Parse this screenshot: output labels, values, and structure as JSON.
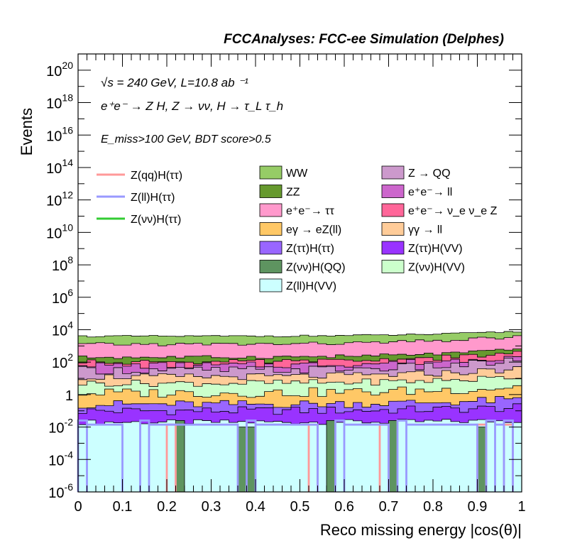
{
  "header": {
    "title": "FCCAnalyses: FCC-ee Simulation (Delphes)"
  },
  "annotations": {
    "energy_line": "√s = 240 GeV, L=10.8 ab ⁻¹",
    "process_line": "e⁺e⁻ → Z H, Z → νν, H → τ_L τ_h",
    "cut_line": "E_miss>100 GeV, BDT score>0.5"
  },
  "colors": {
    "WW": "#96cc66",
    "ZZ": "#66992e",
    "ee_tautau": "#ff99cc",
    "egamma_eZll": "#ffc866",
    "Ztautau_Htautau": "#9966ff",
    "Znunu_HQQ": "#5e9460",
    "Zll_HVV": "#ccffff",
    "Z_QQ": "#cc99cc",
    "ee_ll": "#cc66cc",
    "ee_nuenue_Z": "#ff6699",
    "gammagamma_ll": "#ffcc99",
    "Ztautau_HVV": "#9933ff",
    "Znunu_HVV": "#ccffcc",
    "Zqq_Htautau_line": "#ff9999",
    "Zll_Htautau_line": "#9999ff",
    "Znunu_Htautau_line": "#33cc33"
  },
  "chart_data": {
    "type": "area",
    "title": "FCCAnalyses: FCC-ee Simulation (Delphes)",
    "xlabel": "Reco missing energy |cos(θ)|",
    "ylabel": "Events",
    "xlim": [
      0,
      1
    ],
    "ylim": [
      1e-06,
      1e+21
    ],
    "yscale": "log",
    "grid": false,
    "legend_position": "top",
    "x_ticks": [
      "0",
      "0.1",
      "0.2",
      "0.3",
      "0.4",
      "0.5",
      "0.6",
      "0.7",
      "0.8",
      "0.9",
      "1"
    ],
    "y_ticks": [
      {
        "base": "10",
        "exp": "-6"
      },
      {
        "base": "10",
        "exp": "-4"
      },
      {
        "base": "10",
        "exp": "-2"
      },
      {
        "base": "1",
        "exp": ""
      },
      {
        "base": "10",
        "exp": "2"
      },
      {
        "base": "10",
        "exp": "4"
      },
      {
        "base": "10",
        "exp": "6"
      },
      {
        "base": "10",
        "exp": "8"
      },
      {
        "base": "10",
        "exp": "10"
      },
      {
        "base": "10",
        "exp": "12"
      },
      {
        "base": "10",
        "exp": "14"
      },
      {
        "base": "10",
        "exp": "16"
      },
      {
        "base": "10",
        "exp": "18"
      },
      {
        "base": "10",
        "exp": "20"
      }
    ],
    "bins": 50,
    "stack_cumulative_log10": [
      {
        "name": "Z(ll)H(VV)",
        "key": "Zll_HVV",
        "level": -1.7,
        "amp": 0.15,
        "rise": 0.1
      },
      {
        "name": "Z(ττ)H(VV)",
        "key": "Ztautau_HVV",
        "level": -1.0,
        "amp": 0.25,
        "rise": 0.2
      },
      {
        "name": "Z(ττ)H(ττ)",
        "key": "Ztautau_Htautau",
        "level": -0.6,
        "amp": 0.25,
        "rise": 0.3
      },
      {
        "name": "eγ → eZ(ll)",
        "key": "egamma_eZll",
        "level": 0.1,
        "amp": 0.3,
        "rise": 0.4
      },
      {
        "name": "Z(νν)H(VV)",
        "key": "Znunu_HVV",
        "level": 0.7,
        "amp": 0.2,
        "rise": 0.4
      },
      {
        "name": "γγ → ll",
        "key": "gammagamma_ll",
        "level": 1.1,
        "amp": 0.2,
        "rise": 0.5
      },
      {
        "name": "Z → QQ",
        "key": "Z_QQ",
        "level": 1.5,
        "amp": 0.25,
        "rise": 0.6
      },
      {
        "name": "e⁺e⁻→ ll",
        "key": "ee_ll",
        "level": 1.8,
        "amp": 0.2,
        "rise": 0.6
      },
      {
        "name": "e⁺e⁻→ ν_e ν_e Z",
        "key": "ee_nuenue_Z",
        "level": 2.0,
        "amp": 0.15,
        "rise": 0.6
      },
      {
        "name": "ZZ",
        "key": "ZZ",
        "level": 2.3,
        "amp": 0.1,
        "rise": 0.5
      },
      {
        "name": "e⁺e⁻→ ττ",
        "key": "ee_tautau",
        "level": 3.1,
        "amp": 0.1,
        "rise": 0.5
      },
      {
        "name": "WW",
        "key": "WW",
        "level": 3.6,
        "amp": 0.05,
        "rise": 0.3
      }
    ],
    "Znunu_HQQ_bins": [
      {
        "x": [
          0.22,
          0.24
        ],
        "log10_top": -1.6
      },
      {
        "x": [
          0.36,
          0.38
        ],
        "log10_top": -2.0
      },
      {
        "x": [
          0.38,
          0.4
        ],
        "log10_top": -2.0
      },
      {
        "x": [
          0.56,
          0.58
        ],
        "log10_top": -1.6
      },
      {
        "x": [
          0.7,
          0.72
        ],
        "log10_top": -1.6
      },
      {
        "x": [
          0.9,
          0.92
        ],
        "log10_top": -2.0
      }
    ],
    "line_series": [
      {
        "name": "Z(qq)H(ττ)",
        "key": "Zqq_Htautau_line",
        "segments": [
          [
            0.2,
            0.22,
            -1.85
          ],
          [
            0.52,
            0.54,
            -1.85
          ],
          [
            0.68,
            0.7,
            -1.85
          ],
          [
            0.9,
            0.92,
            -1.85
          ],
          [
            0.96,
            0.98,
            -1.85
          ]
        ]
      },
      {
        "name": "Z(ll)H(ττ)",
        "key": "Zll_Htautau_line",
        "segments": [
          [
            0.0,
            0.02,
            -1.6
          ],
          [
            0.02,
            0.1,
            -1.85
          ],
          [
            0.14,
            0.16,
            -1.6
          ],
          [
            0.16,
            0.36,
            -1.85
          ],
          [
            0.38,
            0.4,
            -1.6
          ],
          [
            0.4,
            0.54,
            -1.85
          ],
          [
            0.58,
            0.6,
            -1.6
          ],
          [
            0.6,
            0.7,
            -1.85
          ],
          [
            0.72,
            0.74,
            -1.6
          ],
          [
            0.74,
            0.9,
            -1.85
          ],
          [
            0.92,
            0.94,
            -1.6
          ],
          [
            0.94,
            0.96,
            -1.85
          ],
          [
            0.96,
            0.98,
            -1.6
          ]
        ]
      },
      {
        "name": "Z(νν)H(ττ)",
        "key": "Znunu_Htautau_line",
        "segments": []
      }
    ],
    "legend": {
      "lines": [
        {
          "label": "Z(qq)H(ττ)",
          "key": "Zqq_Htautau_line"
        },
        {
          "label": "Z(ll)H(ττ)",
          "key": "Zll_Htautau_line"
        },
        {
          "label": "Z(νν)H(ττ)",
          "key": "Znunu_Htautau_line"
        }
      ],
      "col1": [
        {
          "label": "WW",
          "key": "WW"
        },
        {
          "label": "ZZ",
          "key": "ZZ"
        },
        {
          "label": "e⁺e⁻→ ττ",
          "key": "ee_tautau"
        },
        {
          "label": "eγ → eZ(ll)",
          "key": "egamma_eZll"
        },
        {
          "label": "Z(ττ)H(ττ)",
          "key": "Ztautau_Htautau"
        },
        {
          "label": "Z(νν)H(QQ)",
          "key": "Znunu_HQQ"
        },
        {
          "label": "Z(ll)H(VV)",
          "key": "Zll_HVV"
        }
      ],
      "col2": [
        {
          "label": "Z → QQ",
          "key": "Z_QQ"
        },
        {
          "label": "e⁺e⁻→ ll",
          "key": "ee_ll"
        },
        {
          "label": "e⁺e⁻→ ν_e ν_e Z",
          "key": "ee_nuenue_Z"
        },
        {
          "label": "γγ → ll",
          "key": "gammagamma_ll"
        },
        {
          "label": "Z(ττ)H(VV)",
          "key": "Ztautau_HVV"
        },
        {
          "label": "Z(νν)H(VV)",
          "key": "Znunu_HVV"
        }
      ]
    }
  }
}
